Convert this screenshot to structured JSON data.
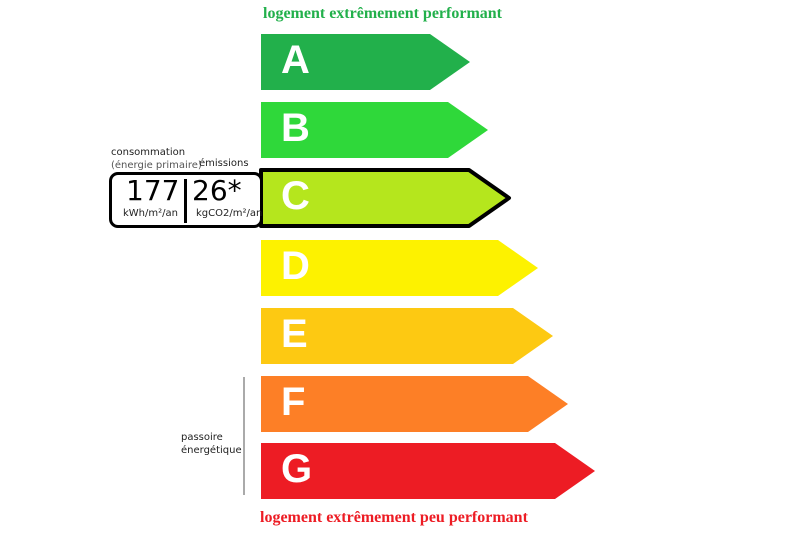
{
  "top_label": "logement extrêmement performant",
  "bottom_label": "logement extrêmement peu performant",
  "top_color": "#22b04b",
  "bottom_color": "#ed1c24",
  "classes": [
    {
      "letter": "A",
      "color": "#22b04b"
    },
    {
      "letter": "B",
      "color": "#2fd83a"
    },
    {
      "letter": "C",
      "color": "#b5e61d",
      "selected": true
    },
    {
      "letter": "D",
      "color": "#fdf200"
    },
    {
      "letter": "E",
      "color": "#fdc912"
    },
    {
      "letter": "F",
      "color": "#fd7f26"
    },
    {
      "letter": "G",
      "color": "#ed1c24"
    }
  ],
  "consumption": {
    "label1": "consommation",
    "label2": "(énergie primaire)",
    "value": "177",
    "unit": "kWh/m²/an"
  },
  "emissions": {
    "label": "émissions",
    "value": "26*",
    "unit": "kgCO2/m²/an"
  },
  "passoire": {
    "line1": "passoire",
    "line2": "énergétique"
  }
}
